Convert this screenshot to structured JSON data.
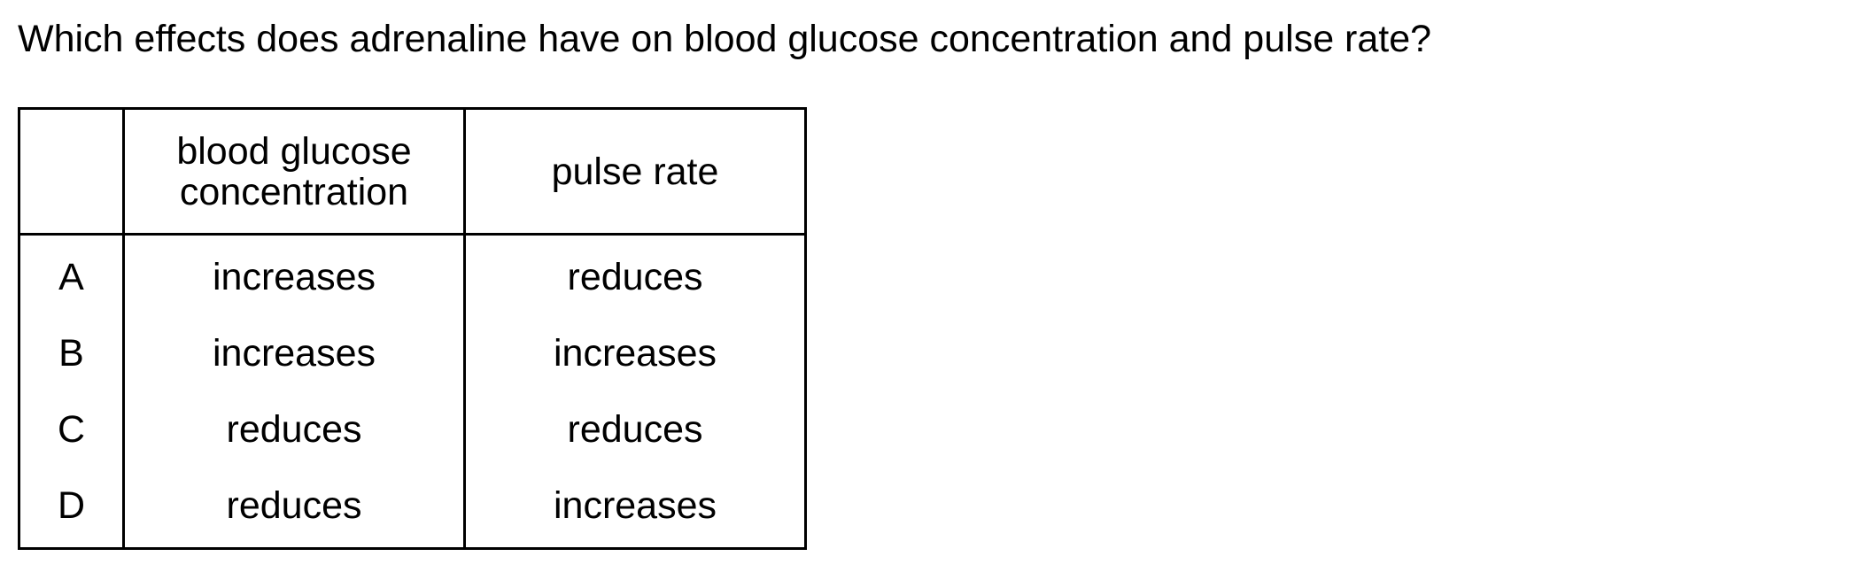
{
  "question": "Which effects does adrenaline have on blood glucose concentration and pulse rate?",
  "table": {
    "headers": {
      "letter": "",
      "glucose_line1": "blood glucose",
      "glucose_line2": "concentration",
      "pulse": "pulse rate"
    },
    "rows": [
      {
        "letter": "A",
        "glucose": "increases",
        "pulse": "reduces"
      },
      {
        "letter": "B",
        "glucose": "increases",
        "pulse": "increases"
      },
      {
        "letter": "C",
        "glucose": "reduces",
        "pulse": "reduces"
      },
      {
        "letter": "D",
        "glucose": "reduces",
        "pulse": "increases"
      }
    ]
  }
}
